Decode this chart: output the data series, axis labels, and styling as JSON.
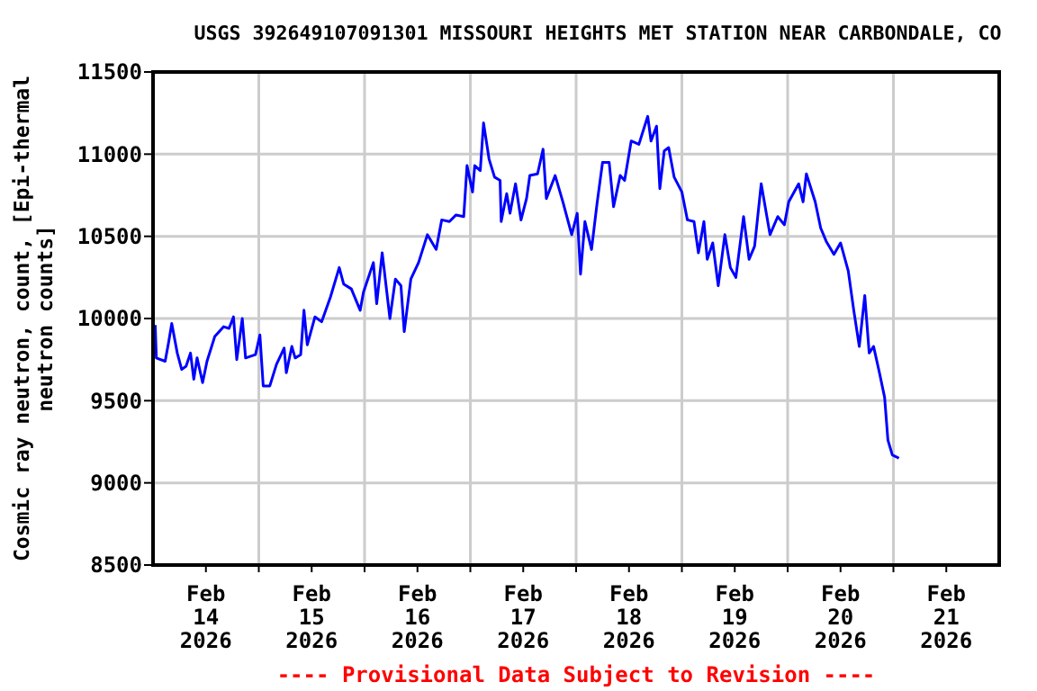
{
  "chart_data": {
    "type": "line",
    "title": "USGS 392649107091301 MISSOURI HEIGHTS MET STATION NEAR CARBONDALE, CO",
    "ylabel": "Cosmic ray neutron, count, [Epi-thermal neutron counts]",
    "annotations": [
      "---- Provisional Data Subject to Revision ----"
    ],
    "x": [
      "2026-02-14T00:30",
      "2026-02-14T00:45",
      "2026-02-14T02:45",
      "2026-02-14T03:30",
      "2026-02-14T04:15",
      "2026-02-14T05:30",
      "2026-02-14T06:30",
      "2026-02-14T07:30",
      "2026-02-14T08:30",
      "2026-02-14T09:15",
      "2026-02-14T10:00",
      "2026-02-14T11:15",
      "2026-02-14T12:15",
      "2026-02-14T14:00",
      "2026-02-14T16:00",
      "2026-02-14T17:15",
      "2026-02-14T18:15",
      "2026-02-14T19:00",
      "2026-02-14T20:15",
      "2026-02-14T21:00",
      "2026-02-14T23:15",
      "2026-02-15T00:15",
      "2026-02-15T01:00",
      "2026-02-15T02:30",
      "2026-02-15T04:00",
      "2026-02-15T05:45",
      "2026-02-15T06:15",
      "2026-02-15T07:30",
      "2026-02-15T08:15",
      "2026-02-15T09:30",
      "2026-02-15T10:15",
      "2026-02-15T11:00",
      "2026-02-15T12:45",
      "2026-02-15T14:15",
      "2026-02-15T16:15",
      "2026-02-15T18:15",
      "2026-02-15T19:15",
      "2026-02-15T21:00",
      "2026-02-15T23:00",
      "2026-02-15T23:45",
      "2026-02-16T02:00",
      "2026-02-16T02:45",
      "2026-02-16T04:00",
      "2026-02-16T05:45",
      "2026-02-16T07:00",
      "2026-02-16T08:15",
      "2026-02-16T09:00",
      "2026-02-16T10:30",
      "2026-02-16T12:15",
      "2026-02-16T14:15",
      "2026-02-16T16:15",
      "2026-02-16T17:30",
      "2026-02-16T19:15",
      "2026-02-16T20:45",
      "2026-02-16T22:30",
      "2026-02-16T23:15",
      "2026-02-17T00:30",
      "2026-02-17T01:00",
      "2026-02-17T02:15",
      "2026-02-17T03:00",
      "2026-02-17T04:15",
      "2026-02-17T05:30",
      "2026-02-17T06:45",
      "2026-02-17T07:00",
      "2026-02-17T08:15",
      "2026-02-17T09:00",
      "2026-02-17T10:15",
      "2026-02-17T11:30",
      "2026-02-17T12:45",
      "2026-02-17T13:30",
      "2026-02-17T15:15",
      "2026-02-17T16:30",
      "2026-02-17T17:15",
      "2026-02-17T19:15",
      "2026-02-17T21:00",
      "2026-02-17T23:00",
      "2026-02-18T00:15",
      "2026-02-18T01:00",
      "2026-02-18T02:00",
      "2026-02-18T03:30",
      "2026-02-18T04:45",
      "2026-02-18T06:00",
      "2026-02-18T07:30",
      "2026-02-18T08:30",
      "2026-02-18T10:00",
      "2026-02-18T11:00",
      "2026-02-18T12:30",
      "2026-02-18T14:15",
      "2026-02-18T16:15",
      "2026-02-18T17:00",
      "2026-02-18T18:15",
      "2026-02-18T19:00",
      "2026-02-18T20:00",
      "2026-02-18T21:00",
      "2026-02-18T22:15",
      "2026-02-19T00:00",
      "2026-02-19T01:15",
      "2026-02-19T02:45",
      "2026-02-19T03:45",
      "2026-02-19T05:00",
      "2026-02-19T05:45",
      "2026-02-19T07:00",
      "2026-02-19T08:15",
      "2026-02-19T09:45",
      "2026-02-19T11:00",
      "2026-02-19T12:15",
      "2026-02-19T14:00",
      "2026-02-19T15:15",
      "2026-02-19T16:30",
      "2026-02-19T18:00",
      "2026-02-19T20:00",
      "2026-02-19T21:45",
      "2026-02-19T23:15",
      "2026-02-20T00:15",
      "2026-02-20T02:30",
      "2026-02-20T03:30",
      "2026-02-20T04:15",
      "2026-02-20T06:15",
      "2026-02-20T07:30",
      "2026-02-20T08:45",
      "2026-02-20T10:30",
      "2026-02-20T12:00",
      "2026-02-20T13:45",
      "2026-02-20T15:00",
      "2026-02-20T16:15",
      "2026-02-20T17:30",
      "2026-02-20T18:30",
      "2026-02-20T19:30",
      "2026-02-20T20:45",
      "2026-02-20T22:00",
      "2026-02-20T22:45",
      "2026-02-20T23:45",
      "2026-02-21T01:15"
    ],
    "series": [
      {
        "color": "#0000ff",
        "values": [
          9960,
          9760,
          9740,
          9850,
          9970,
          9790,
          9690,
          9710,
          9790,
          9630,
          9760,
          9610,
          9740,
          9890,
          9950,
          9940,
          10010,
          9750,
          10000,
          9760,
          9780,
          9900,
          9590,
          9590,
          9720,
          9820,
          9670,
          9830,
          9760,
          9780,
          10050,
          9840,
          10010,
          9980,
          10130,
          10310,
          10210,
          10180,
          10050,
          10160,
          10340,
          10090,
          10400,
          10000,
          10240,
          10200,
          9920,
          10240,
          10340,
          10510,
          10420,
          10600,
          10590,
          10630,
          10620,
          10930,
          10770,
          10930,
          10900,
          11190,
          10970,
          10860,
          10840,
          10590,
          10760,
          10640,
          10820,
          10600,
          10730,
          10870,
          10880,
          11030,
          10730,
          10870,
          10710,
          10510,
          10640,
          10270,
          10590,
          10420,
          10700,
          10950,
          10950,
          10680,
          10870,
          10840,
          11080,
          11060,
          11230,
          11080,
          11170,
          10790,
          11020,
          11040,
          10860,
          10770,
          10600,
          10590,
          10400,
          10590,
          10360,
          10460,
          10200,
          10510,
          10310,
          10250,
          10620,
          10360,
          10440,
          10820,
          10510,
          10620,
          10570,
          10710,
          10820,
          10710,
          10880,
          10710,
          10550,
          10470,
          10390,
          10460,
          10290,
          10050,
          9830,
          10140,
          9790,
          9830,
          9680,
          9520,
          9260,
          9170,
          9150
        ]
      }
    ],
    "xlim": [
      "2026-02-14T00:00",
      "2026-02-22T00:00"
    ],
    "xticks": [
      {
        "value": "2026-02-14T12:00",
        "label": "Feb\n14\n2026"
      },
      {
        "value": "2026-02-15T00:00",
        "label": null
      },
      {
        "value": "2026-02-15T12:00",
        "label": "Feb\n15\n2026"
      },
      {
        "value": "2026-02-16T00:00",
        "label": null
      },
      {
        "value": "2026-02-16T12:00",
        "label": "Feb\n16\n2026"
      },
      {
        "value": "2026-02-17T00:00",
        "label": null
      },
      {
        "value": "2026-02-17T12:00",
        "label": "Feb\n17\n2026"
      },
      {
        "value": "2026-02-18T00:00",
        "label": null
      },
      {
        "value": "2026-02-18T12:00",
        "label": "Feb\n18\n2026"
      },
      {
        "value": "2026-02-19T00:00",
        "label": null
      },
      {
        "value": "2026-02-19T12:00",
        "label": "Feb\n19\n2026"
      },
      {
        "value": "2026-02-20T00:00",
        "label": null
      },
      {
        "value": "2026-02-20T12:00",
        "label": "Feb\n20\n2026"
      },
      {
        "value": "2026-02-21T00:00",
        "label": null
      },
      {
        "value": "2026-02-21T12:00",
        "label": "Feb\n21\n2026"
      }
    ],
    "ylim": [
      8500,
      11500
    ],
    "yticks": [
      8500,
      9000,
      9500,
      10000,
      10500,
      11000,
      11500
    ],
    "grid": true,
    "marker": "none",
    "line_style": "solid"
  }
}
